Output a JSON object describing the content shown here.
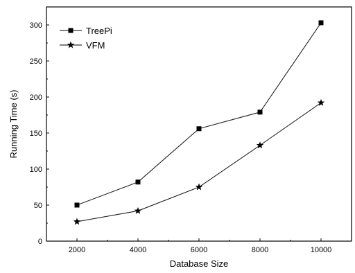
{
  "chart_data": {
    "type": "line",
    "xlabel": "Database Size",
    "ylabel": "Running Time (s)",
    "x": [
      2000,
      4000,
      6000,
      8000,
      10000
    ],
    "xlim": [
      1000,
      11000
    ],
    "ylim": [
      0,
      325
    ],
    "x_ticks": [
      2000,
      4000,
      6000,
      8000,
      10000
    ],
    "y_ticks": [
      0,
      50,
      100,
      150,
      200,
      250,
      300
    ],
    "legend_position": "top-left",
    "grid": false,
    "series": [
      {
        "name": "TreePi",
        "marker": "square",
        "color": "#000000",
        "values": [
          50,
          82,
          156,
          179,
          303
        ]
      },
      {
        "name": "VFM",
        "marker": "star",
        "color": "#000000",
        "values": [
          27,
          42,
          75,
          133,
          192
        ]
      }
    ]
  }
}
